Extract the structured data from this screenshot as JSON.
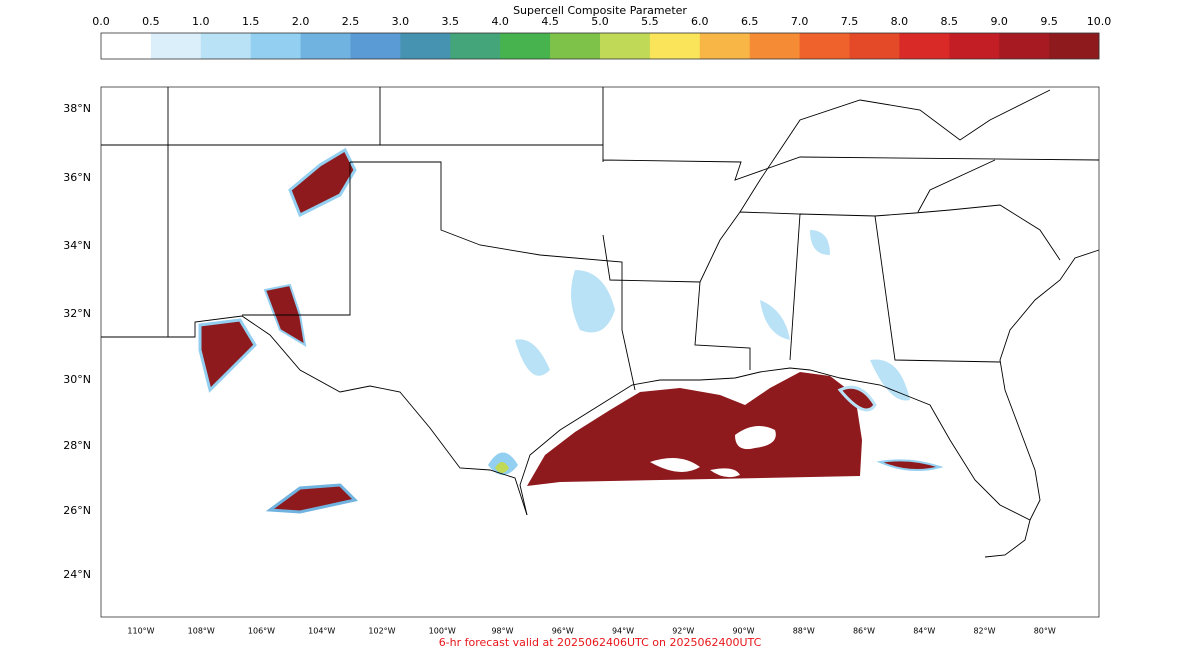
{
  "colorbar": {
    "title": "Supercell Composite Parameter",
    "ticks": [
      "0.0",
      "0.5",
      "1.0",
      "1.5",
      "2.0",
      "2.5",
      "3.0",
      "3.5",
      "4.0",
      "4.5",
      "5.0",
      "5.5",
      "6.0",
      "6.5",
      "7.0",
      "7.5",
      "8.0",
      "8.5",
      "9.0",
      "9.5",
      "10.0"
    ],
    "colors": [
      "#ffffff",
      "#dbeffb",
      "#b9e2f7",
      "#93cff0",
      "#70b2e0",
      "#5a9bd6",
      "#4593b0",
      "#44a57a",
      "#47b34e",
      "#7fc24a",
      "#c0d957",
      "#f9e45a",
      "#f8b646",
      "#f58b35",
      "#f0622b",
      "#e44a28",
      "#d92a27",
      "#c31e25",
      "#a71a22",
      "#8e1a1e"
    ]
  },
  "map": {
    "lat_labels": [
      "38°N",
      "36°N",
      "34°N",
      "32°N",
      "30°N",
      "28°N",
      "26°N",
      "24°N"
    ],
    "lon_labels": [
      "110°W",
      "108°W",
      "106°W",
      "104°W",
      "102°W",
      "100°W",
      "98°W",
      "96°W",
      "94°W",
      "92°W",
      "90°W",
      "88°W",
      "86°W",
      "84°W",
      "82°W",
      "80°W"
    ]
  },
  "footer": "6-hr forecast valid at 2025062406UTC on 2025062400UTC"
}
